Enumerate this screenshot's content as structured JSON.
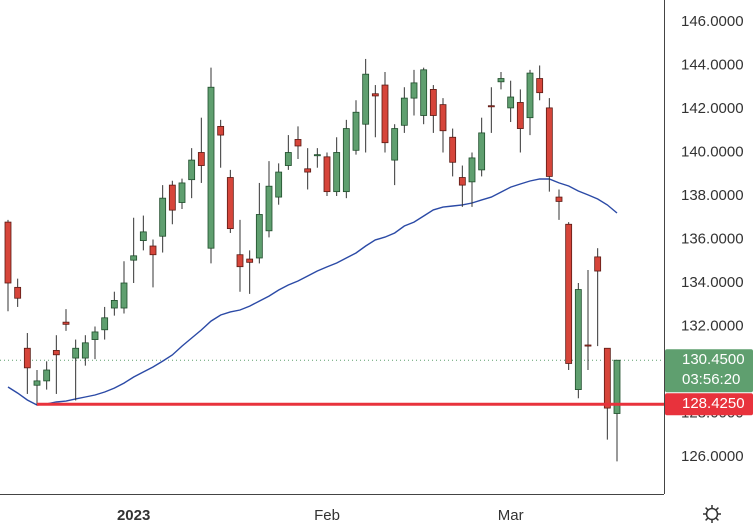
{
  "chart_data": {
    "type": "candlestick",
    "categories": [
      null,
      null,
      null,
      null,
      null,
      null,
      null,
      null,
      null,
      null,
      null,
      null,
      null,
      "2023",
      null,
      null,
      null,
      null,
      null,
      null,
      null,
      null,
      null,
      null,
      null,
      null,
      null,
      null,
      null,
      null,
      null,
      null,
      null,
      "Feb",
      null,
      null,
      null,
      null,
      null,
      null,
      null,
      null,
      null,
      null,
      null,
      null,
      null,
      null,
      null,
      null,
      null,
      null,
      "Mar",
      null,
      null,
      null,
      null,
      null,
      null,
      null,
      null,
      null,
      null,
      null
    ],
    "open": [
      136.8,
      133.8,
      131.0,
      129.3,
      129.5,
      130.9,
      132.2,
      130.55,
      130.55,
      131.4,
      131.85,
      132.85,
      132.85,
      135.05,
      135.95,
      135.7,
      136.15,
      138.5,
      137.7,
      138.75,
      140.0,
      135.6,
      141.2,
      138.85,
      135.3,
      135.1,
      135.15,
      136.4,
      137.95,
      139.4,
      140.6,
      139.25,
      139.85,
      139.8,
      138.2,
      138.2,
      140.1,
      141.3,
      142.7,
      143.1,
      139.65,
      141.25,
      142.5,
      141.7,
      142.9,
      142.2,
      140.7,
      138.85,
      138.65,
      139.2,
      142.15,
      143.25,
      142.05,
      142.3,
      141.6,
      143.4,
      142.05,
      137.95,
      136.7,
      129.1,
      131.15,
      135.2,
      131.0,
      128.0
    ],
    "high": [
      136.9,
      134.2,
      131.7,
      130.0,
      130.4,
      131.6,
      132.8,
      131.4,
      131.6,
      132.0,
      132.9,
      133.6,
      135.0,
      137.0,
      137.1,
      136.0,
      138.5,
      138.7,
      138.8,
      140.2,
      141.6,
      143.9,
      141.5,
      139.2,
      136.9,
      135.5,
      138.6,
      139.6,
      139.5,
      140.8,
      141.2,
      140.2,
      140.2,
      140.0,
      140.7,
      141.5,
      142.4,
      144.3,
      143.1,
      143.7,
      141.3,
      143.0,
      143.8,
      143.9,
      143.1,
      142.5,
      141.1,
      139.4,
      140.0,
      141.6,
      143.0,
      143.7,
      143.3,
      142.9,
      143.8,
      144.0,
      142.5,
      138.3,
      136.8,
      134.0,
      134.6,
      135.6,
      131.0,
      130.45
    ],
    "low": [
      132.7,
      132.9,
      128.9,
      128.4,
      129.1,
      128.9,
      131.8,
      128.6,
      130.2,
      130.5,
      131.4,
      132.5,
      132.6,
      134.0,
      135.5,
      133.8,
      135.4,
      136.7,
      137.4,
      137.9,
      138.6,
      134.9,
      139.3,
      136.3,
      133.6,
      133.5,
      134.9,
      136.1,
      137.6,
      139.2,
      139.7,
      138.3,
      139.3,
      138.0,
      138.0,
      137.9,
      139.9,
      140.0,
      140.7,
      140.0,
      138.5,
      140.9,
      141.7,
      141.3,
      140.9,
      140.0,
      138.9,
      137.5,
      137.5,
      138.9,
      140.9,
      142.9,
      141.4,
      140.0,
      140.8,
      142.4,
      138.2,
      136.9,
      130.0,
      128.7,
      130.0,
      131.1,
      126.8,
      125.8
    ],
    "close": [
      134.0,
      133.3,
      130.1,
      129.5,
      130.0,
      130.7,
      132.1,
      131.0,
      131.25,
      131.75,
      132.4,
      133.2,
      134.0,
      135.25,
      136.35,
      135.3,
      137.9,
      137.35,
      138.6,
      139.65,
      139.4,
      143.0,
      140.8,
      136.5,
      134.75,
      134.95,
      137.15,
      138.45,
      139.1,
      140.0,
      140.3,
      139.1,
      139.9,
      138.2,
      140.0,
      141.1,
      141.85,
      143.6,
      142.6,
      140.45,
      141.1,
      142.5,
      143.2,
      143.8,
      141.7,
      141.0,
      139.55,
      138.5,
      139.75,
      140.9,
      142.1,
      143.4,
      142.55,
      141.1,
      143.65,
      142.75,
      138.9,
      137.75,
      130.3,
      133.7,
      131.1,
      134.55,
      128.25,
      130.45
    ],
    "up_color": "#5f9f6f",
    "down_color": "#d6453a",
    "moving_average": {
      "color": "#2b4aa6",
      "values": [
        129.22,
        128.94,
        128.62,
        128.39,
        128.44,
        128.53,
        128.57,
        128.67,
        128.76,
        128.85,
        128.99,
        129.17,
        129.4,
        129.68,
        129.91,
        130.14,
        130.41,
        130.69,
        131.1,
        131.47,
        131.84,
        132.25,
        132.53,
        132.67,
        132.76,
        132.94,
        133.17,
        133.4,
        133.68,
        133.91,
        134.09,
        134.32,
        134.55,
        134.74,
        134.92,
        135.15,
        135.38,
        135.7,
        135.98,
        136.11,
        136.3,
        136.62,
        136.8,
        137.08,
        137.36,
        137.49,
        137.54,
        137.59,
        137.68,
        137.82,
        137.95,
        138.18,
        138.41,
        138.55,
        138.69,
        138.78,
        138.78,
        138.6,
        138.46,
        138.23,
        138.05,
        137.86,
        137.59,
        137.22
      ]
    },
    "last_price": {
      "value": 130.45,
      "label": "130.4500",
      "color": "#5f9f6f"
    },
    "countdown": "03:56:20",
    "level": {
      "value": 128.425,
      "label": "128.4250",
      "color": "#e8323c"
    },
    "ylim": [
      124.3,
      147.01
    ],
    "yticks": [
      {
        "value": 126,
        "label": "126.0000"
      },
      {
        "value": 128,
        "label": "128.0000"
      },
      {
        "value": 130,
        "label": "130.0000"
      },
      {
        "value": 132,
        "label": "132.0000"
      },
      {
        "value": 134,
        "label": "134.0000"
      },
      {
        "value": 136,
        "label": "136.0000"
      },
      {
        "value": 138,
        "label": "138.0000"
      },
      {
        "value": 140,
        "label": "140.0000"
      },
      {
        "value": 142,
        "label": "142.0000"
      },
      {
        "value": 144,
        "label": "144.0000"
      },
      {
        "value": 146,
        "label": "146.0000"
      }
    ]
  }
}
